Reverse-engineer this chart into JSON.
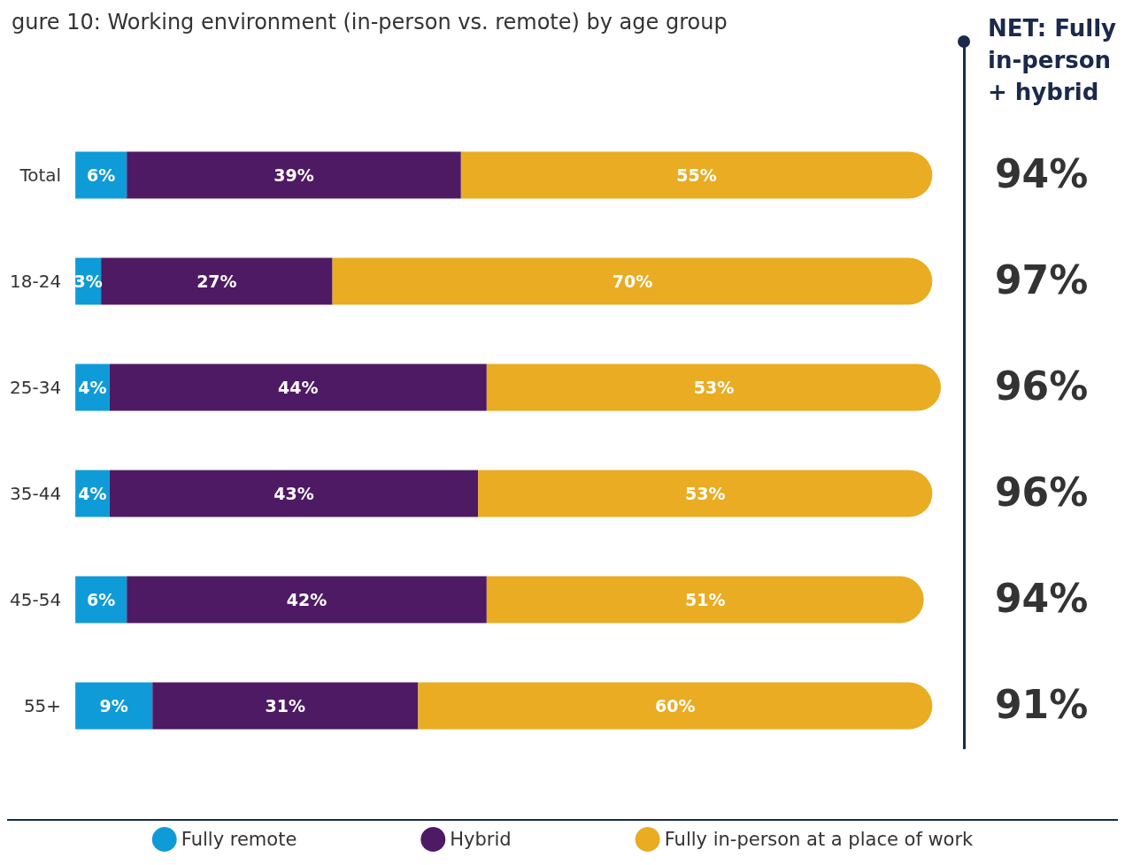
{
  "chart_data": {
    "type": "bar",
    "orientation": "horizontal",
    "stacked": true,
    "title": "gure 10: Working environment (in-person vs. remote) by age group",
    "categories": [
      "Total",
      "18-24",
      "25-34",
      "35-44",
      "45-54",
      "55+"
    ],
    "series": [
      {
        "name": "Fully remote",
        "color": "#0f9bd7",
        "values": [
          6,
          3,
          4,
          4,
          6,
          9
        ],
        "value_labels": [
          "6%",
          "3%",
          "4%",
          "4%",
          "6%",
          "9%"
        ]
      },
      {
        "name": "Hybrid",
        "color": "#4e1a64",
        "values": [
          39,
          27,
          44,
          43,
          42,
          31
        ],
        "value_labels": [
          "39%",
          "27%",
          "44%",
          "43%",
          "42%",
          "31%"
        ]
      },
      {
        "name": "Fully in-person at a place of work",
        "color": "#e9ac22",
        "values": [
          55,
          70,
          53,
          53,
          51,
          60
        ],
        "value_labels": [
          "55%",
          "70%",
          "53%",
          "53%",
          "51%",
          "60%"
        ]
      }
    ],
    "annotations": [
      "NET: Fully in-person + hybrid",
      "94%",
      "97%",
      "96%",
      "96%",
      "94%",
      "91%"
    ],
    "legend": "bottom"
  }
}
